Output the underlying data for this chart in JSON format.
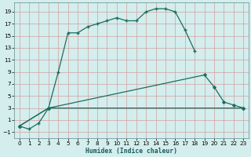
{
  "xlabel": "Humidex (Indice chaleur)",
  "bg_color": "#d4eded",
  "grid_color": "#b8d8d8",
  "line_color": "#1a6e5e",
  "xlim": [
    -0.5,
    23.5
  ],
  "ylim": [
    -2,
    20.5
  ],
  "xticks": [
    0,
    1,
    2,
    3,
    4,
    5,
    6,
    7,
    8,
    9,
    10,
    11,
    12,
    13,
    14,
    15,
    16,
    17,
    18,
    19,
    20,
    21,
    22,
    23
  ],
  "yticks": [
    -1,
    1,
    3,
    5,
    7,
    9,
    11,
    13,
    15,
    17,
    19
  ],
  "curve1_x": [
    0,
    1,
    2,
    3,
    4,
    5,
    6,
    7,
    8,
    9,
    10,
    11,
    12,
    13,
    14,
    15,
    16,
    17,
    18
  ],
  "curve1_y": [
    0,
    -0.5,
    0.5,
    3.0,
    9.0,
    15.5,
    15.5,
    16.5,
    17.0,
    17.5,
    18.0,
    17.5,
    17.5,
    19.0,
    19.5,
    19.5,
    19.0,
    16.0,
    12.5
  ],
  "curve2_x": [
    0,
    3,
    19,
    20,
    21,
    22,
    23
  ],
  "curve2_y": [
    0,
    3.0,
    8.5,
    6.5,
    4.0,
    3.5,
    3.0
  ],
  "curve3_x": [
    0,
    3,
    23
  ],
  "curve3_y": [
    0,
    3.0,
    3.0
  ]
}
